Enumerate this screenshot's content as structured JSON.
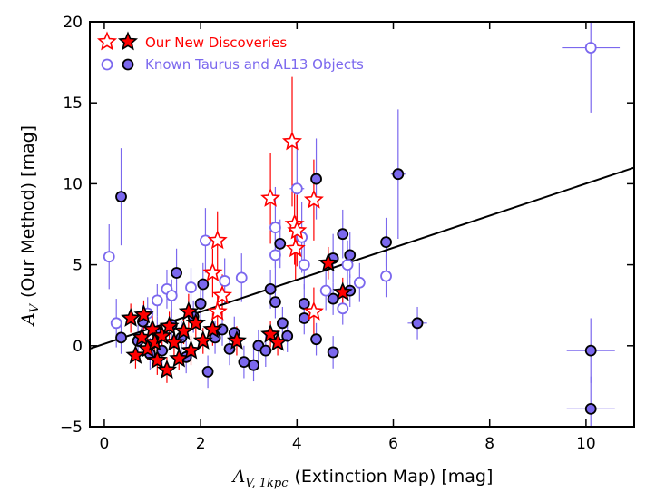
{
  "chart_data": {
    "type": "scatter",
    "title": "",
    "xlabel": {
      "symbol": "A",
      "subscript": "V, 1kpc",
      "text": "(Extinction Map) [mag]"
    },
    "ylabel": {
      "symbol": "A",
      "subscript": "V",
      "text": "(Our Method) [mag]"
    },
    "xlim": [
      -0.3,
      11
    ],
    "ylim": [
      -5,
      20
    ],
    "xticks": [
      0,
      2,
      4,
      6,
      8,
      10
    ],
    "yticks": [
      -5,
      0,
      5,
      10,
      15,
      20
    ],
    "grid": false,
    "legend_position": "top-left",
    "colors": {
      "new_discoveries": "#ff0000",
      "known_objects": "#7b68ee",
      "fit_line": "#000000"
    },
    "fit_line": {
      "x": [
        -0.3,
        11
      ],
      "y": [
        -0.18,
        11.0
      ]
    },
    "series": [
      {
        "name": "Our New Discoveries",
        "marker": "star",
        "points": [
          {
            "x": 0.55,
            "y": 1.7,
            "filled": true,
            "yerr": 0.9
          },
          {
            "x": 0.65,
            "y": -0.6,
            "filled": true,
            "yerr": 0.8
          },
          {
            "x": 0.78,
            "y": 0.5,
            "filled": true,
            "yerr": 1.0
          },
          {
            "x": 0.82,
            "y": 1.9,
            "filled": true,
            "yerr": 0.9
          },
          {
            "x": 0.9,
            "y": -0.2,
            "filled": true,
            "yerr": 0.7
          },
          {
            "x": 1.0,
            "y": 1.0,
            "filled": true,
            "yerr": 0.9
          },
          {
            "x": 1.05,
            "y": 0.2,
            "filled": true,
            "yerr": 0.8
          },
          {
            "x": 1.1,
            "y": -0.9,
            "filled": true,
            "yerr": 0.9
          },
          {
            "x": 1.2,
            "y": 0.6,
            "filled": true,
            "yerr": 0.8
          },
          {
            "x": 1.3,
            "y": -1.5,
            "filled": true,
            "yerr": 0.8
          },
          {
            "x": 1.35,
            "y": 1.2,
            "filled": true,
            "yerr": 0.9
          },
          {
            "x": 1.45,
            "y": 0.2,
            "filled": true,
            "yerr": 0.8
          },
          {
            "x": 1.55,
            "y": -0.8,
            "filled": true,
            "yerr": 0.7
          },
          {
            "x": 1.65,
            "y": 0.9,
            "filled": true,
            "yerr": 0.8
          },
          {
            "x": 1.75,
            "y": 2.1,
            "filled": true,
            "yerr": 1.1
          },
          {
            "x": 1.8,
            "y": -0.3,
            "filled": true,
            "yerr": 0.9
          },
          {
            "x": 1.9,
            "y": 1.4,
            "filled": true,
            "yerr": 0.9
          },
          {
            "x": 2.05,
            "y": 0.3,
            "filled": true,
            "yerr": 0.8
          },
          {
            "x": 2.25,
            "y": 1.0,
            "filled": true,
            "yerr": 1.0
          },
          {
            "x": 2.75,
            "y": 0.3,
            "filled": true,
            "yerr": 0.9
          },
          {
            "x": 3.45,
            "y": 0.7,
            "filled": true,
            "yerr": 0.8
          },
          {
            "x": 3.6,
            "y": 0.2,
            "filled": true,
            "yerr": 0.8
          },
          {
            "x": 4.65,
            "y": 5.1,
            "filled": true,
            "yerr": 1.0
          },
          {
            "x": 4.95,
            "y": 3.3,
            "filled": true,
            "yerr": 0.9
          },
          {
            "x": 2.25,
            "y": 4.5,
            "filled": false,
            "yerr": 1.5
          },
          {
            "x": 2.35,
            "y": 6.5,
            "filled": false,
            "yerr": 1.8
          },
          {
            "x": 2.45,
            "y": 3.1,
            "filled": false,
            "yerr": 1.3
          },
          {
            "x": 2.35,
            "y": 2.1,
            "filled": false,
            "yerr": 1.2
          },
          {
            "x": 3.45,
            "y": 9.1,
            "filled": false,
            "yerr": 2.8
          },
          {
            "x": 3.9,
            "y": 12.6,
            "filled": false,
            "yerr": 4.0
          },
          {
            "x": 3.95,
            "y": 7.5,
            "filled": false,
            "yerr": 2.5
          },
          {
            "x": 3.97,
            "y": 6.0,
            "filled": false,
            "yerr": 2.0
          },
          {
            "x": 4.0,
            "y": 7.1,
            "filled": false,
            "yerr": 2.2
          },
          {
            "x": 4.35,
            "y": 9.0,
            "filled": false,
            "yerr": 2.5
          },
          {
            "x": 4.35,
            "y": 2.1,
            "filled": false,
            "yerr": 1.5
          }
        ]
      },
      {
        "name": "Known Taurus and AL13 Objects",
        "marker": "circle",
        "points": [
          {
            "x": 0.35,
            "y": 9.2,
            "filled": true,
            "yerr": 3.0,
            "xerr": 0.1
          },
          {
            "x": 0.35,
            "y": 0.5,
            "filled": true,
            "yerr": 1.0,
            "xerr": 0.1
          },
          {
            "x": 0.7,
            "y": 0.3,
            "filled": true,
            "yerr": 1.0,
            "xerr": 0.1
          },
          {
            "x": 0.8,
            "y": 1.5,
            "filled": true,
            "yerr": 1.0,
            "xerr": 0.1
          },
          {
            "x": 0.95,
            "y": -0.5,
            "filled": true,
            "yerr": 1.0,
            "xerr": 0.1
          },
          {
            "x": 1.1,
            "y": 0.8,
            "filled": true,
            "yerr": 1.0,
            "xerr": 0.1
          },
          {
            "x": 1.2,
            "y": -0.3,
            "filled": true,
            "yerr": 1.0,
            "xerr": 0.1
          },
          {
            "x": 1.4,
            "y": 1.3,
            "filled": true,
            "yerr": 1.0,
            "xerr": 0.1
          },
          {
            "x": 1.5,
            "y": 4.5,
            "filled": true,
            "yerr": 1.5,
            "xerr": 0.1
          },
          {
            "x": 1.6,
            "y": 0.5,
            "filled": true,
            "yerr": 1.0,
            "xerr": 0.1
          },
          {
            "x": 1.7,
            "y": -0.7,
            "filled": true,
            "yerr": 1.0,
            "xerr": 0.1
          },
          {
            "x": 1.85,
            "y": 1.8,
            "filled": true,
            "yerr": 1.0,
            "xerr": 0.1
          },
          {
            "x": 2.0,
            "y": 2.6,
            "filled": true,
            "yerr": 1.2,
            "xerr": 0.1
          },
          {
            "x": 2.05,
            "y": 3.8,
            "filled": true,
            "yerr": 1.3,
            "xerr": 0.1
          },
          {
            "x": 2.15,
            "y": -1.6,
            "filled": true,
            "yerr": 1.0,
            "xerr": 0.1
          },
          {
            "x": 2.3,
            "y": 0.5,
            "filled": true,
            "yerr": 1.0,
            "xerr": 0.1
          },
          {
            "x": 2.45,
            "y": 1.0,
            "filled": true,
            "yerr": 1.0,
            "xerr": 0.1
          },
          {
            "x": 2.6,
            "y": -0.2,
            "filled": true,
            "yerr": 1.0,
            "xerr": 0.1
          },
          {
            "x": 2.7,
            "y": 0.8,
            "filled": true,
            "yerr": 1.0,
            "xerr": 0.1
          },
          {
            "x": 2.9,
            "y": -1.0,
            "filled": true,
            "yerr": 1.0,
            "xerr": 0.1
          },
          {
            "x": 3.1,
            "y": -1.2,
            "filled": true,
            "yerr": 1.0,
            "xerr": 0.1
          },
          {
            "x": 3.2,
            "y": 0.0,
            "filled": true,
            "yerr": 1.0,
            "xerr": 0.1
          },
          {
            "x": 3.35,
            "y": -0.3,
            "filled": true,
            "yerr": 1.0,
            "xerr": 0.1
          },
          {
            "x": 3.45,
            "y": 3.5,
            "filled": true,
            "yerr": 1.2,
            "xerr": 0.1
          },
          {
            "x": 3.55,
            "y": 2.7,
            "filled": true,
            "yerr": 1.0,
            "xerr": 0.1
          },
          {
            "x": 3.65,
            "y": 6.3,
            "filled": true,
            "yerr": 1.5,
            "xerr": 0.1
          },
          {
            "x": 3.7,
            "y": 1.4,
            "filled": true,
            "yerr": 1.0,
            "xerr": 0.1
          },
          {
            "x": 3.8,
            "y": 0.6,
            "filled": true,
            "yerr": 1.0,
            "xerr": 0.1
          },
          {
            "x": 4.15,
            "y": 2.6,
            "filled": true,
            "yerr": 1.2,
            "xerr": 0.1
          },
          {
            "x": 4.15,
            "y": 1.7,
            "filled": true,
            "yerr": 1.0,
            "xerr": 0.1
          },
          {
            "x": 4.4,
            "y": 10.3,
            "filled": true,
            "yerr": 2.5,
            "xerr": 0.1
          },
          {
            "x": 4.4,
            "y": 0.4,
            "filled": true,
            "yerr": 1.0,
            "xerr": 0.1
          },
          {
            "x": 4.75,
            "y": 5.4,
            "filled": true,
            "yerr": 1.5,
            "xerr": 0.1
          },
          {
            "x": 4.75,
            "y": 2.9,
            "filled": true,
            "yerr": 1.0,
            "xerr": 0.1
          },
          {
            "x": 4.75,
            "y": -0.4,
            "filled": true,
            "yerr": 1.0,
            "xerr": 0.1
          },
          {
            "x": 4.95,
            "y": 6.9,
            "filled": true,
            "yerr": 1.5,
            "xerr": 0.1
          },
          {
            "x": 5.1,
            "y": 5.6,
            "filled": true,
            "yerr": 1.4,
            "xerr": 0.1
          },
          {
            "x": 5.1,
            "y": 3.4,
            "filled": true,
            "yerr": 1.0,
            "xerr": 0.1
          },
          {
            "x": 5.85,
            "y": 6.4,
            "filled": true,
            "yerr": 1.5,
            "xerr": 0.1
          },
          {
            "x": 6.1,
            "y": 10.6,
            "filled": true,
            "yerr": 4.0,
            "xerr": 0.15
          },
          {
            "x": 6.5,
            "y": 1.4,
            "filled": true,
            "yerr": 1.0,
            "xerr": 0.2
          },
          {
            "x": 10.1,
            "y": -0.3,
            "filled": true,
            "yerr": 2.0,
            "xerr": 0.5
          },
          {
            "x": 10.1,
            "y": -3.9,
            "filled": true,
            "yerr": 2.0,
            "xerr": 0.5
          },
          {
            "x": 0.1,
            "y": 5.5,
            "filled": false,
            "yerr": 2.0,
            "xerr": 0.1
          },
          {
            "x": 0.25,
            "y": 1.4,
            "filled": false,
            "yerr": 1.5,
            "xerr": 0.1
          },
          {
            "x": 0.9,
            "y": 2.0,
            "filled": false,
            "yerr": 1.0,
            "xerr": 0.1
          },
          {
            "x": 1.1,
            "y": 2.8,
            "filled": false,
            "yerr": 1.0,
            "xerr": 0.1
          },
          {
            "x": 1.3,
            "y": 3.5,
            "filled": false,
            "yerr": 1.2,
            "xerr": 0.1
          },
          {
            "x": 1.4,
            "y": 3.1,
            "filled": false,
            "yerr": 1.0,
            "xerr": 0.1
          },
          {
            "x": 1.8,
            "y": 3.6,
            "filled": false,
            "yerr": 1.2,
            "xerr": 0.1
          },
          {
            "x": 2.1,
            "y": 6.5,
            "filled": false,
            "yerr": 2.0,
            "xerr": 0.1
          },
          {
            "x": 2.5,
            "y": 4.0,
            "filled": false,
            "yerr": 1.4,
            "xerr": 0.1
          },
          {
            "x": 2.85,
            "y": 4.2,
            "filled": false,
            "yerr": 1.5,
            "xerr": 0.1
          },
          {
            "x": 3.55,
            "y": 7.3,
            "filled": false,
            "yerr": 2.5,
            "xerr": 0.1
          },
          {
            "x": 3.55,
            "y": 5.6,
            "filled": false,
            "yerr": 2.0,
            "xerr": 0.1
          },
          {
            "x": 4.0,
            "y": 9.7,
            "filled": false,
            "yerr": 3.0,
            "xerr": 0.15
          },
          {
            "x": 4.1,
            "y": 6.7,
            "filled": false,
            "yerr": 2.2,
            "xerr": 0.1
          },
          {
            "x": 4.15,
            "y": 5.0,
            "filled": false,
            "yerr": 1.5,
            "xerr": 0.1
          },
          {
            "x": 4.6,
            "y": 3.4,
            "filled": false,
            "yerr": 1.2,
            "xerr": 0.1
          },
          {
            "x": 4.95,
            "y": 2.3,
            "filled": false,
            "yerr": 1.0,
            "xerr": 0.1
          },
          {
            "x": 5.05,
            "y": 5.0,
            "filled": false,
            "yerr": 1.5,
            "xerr": 0.1
          },
          {
            "x": 5.3,
            "y": 3.9,
            "filled": false,
            "yerr": 1.2,
            "xerr": 0.1
          },
          {
            "x": 5.85,
            "y": 4.3,
            "filled": false,
            "yerr": 1.3,
            "xerr": 0.1
          },
          {
            "x": 10.1,
            "y": 18.4,
            "filled": false,
            "yerr": 4.0,
            "xerr": 0.6
          }
        ]
      }
    ]
  }
}
